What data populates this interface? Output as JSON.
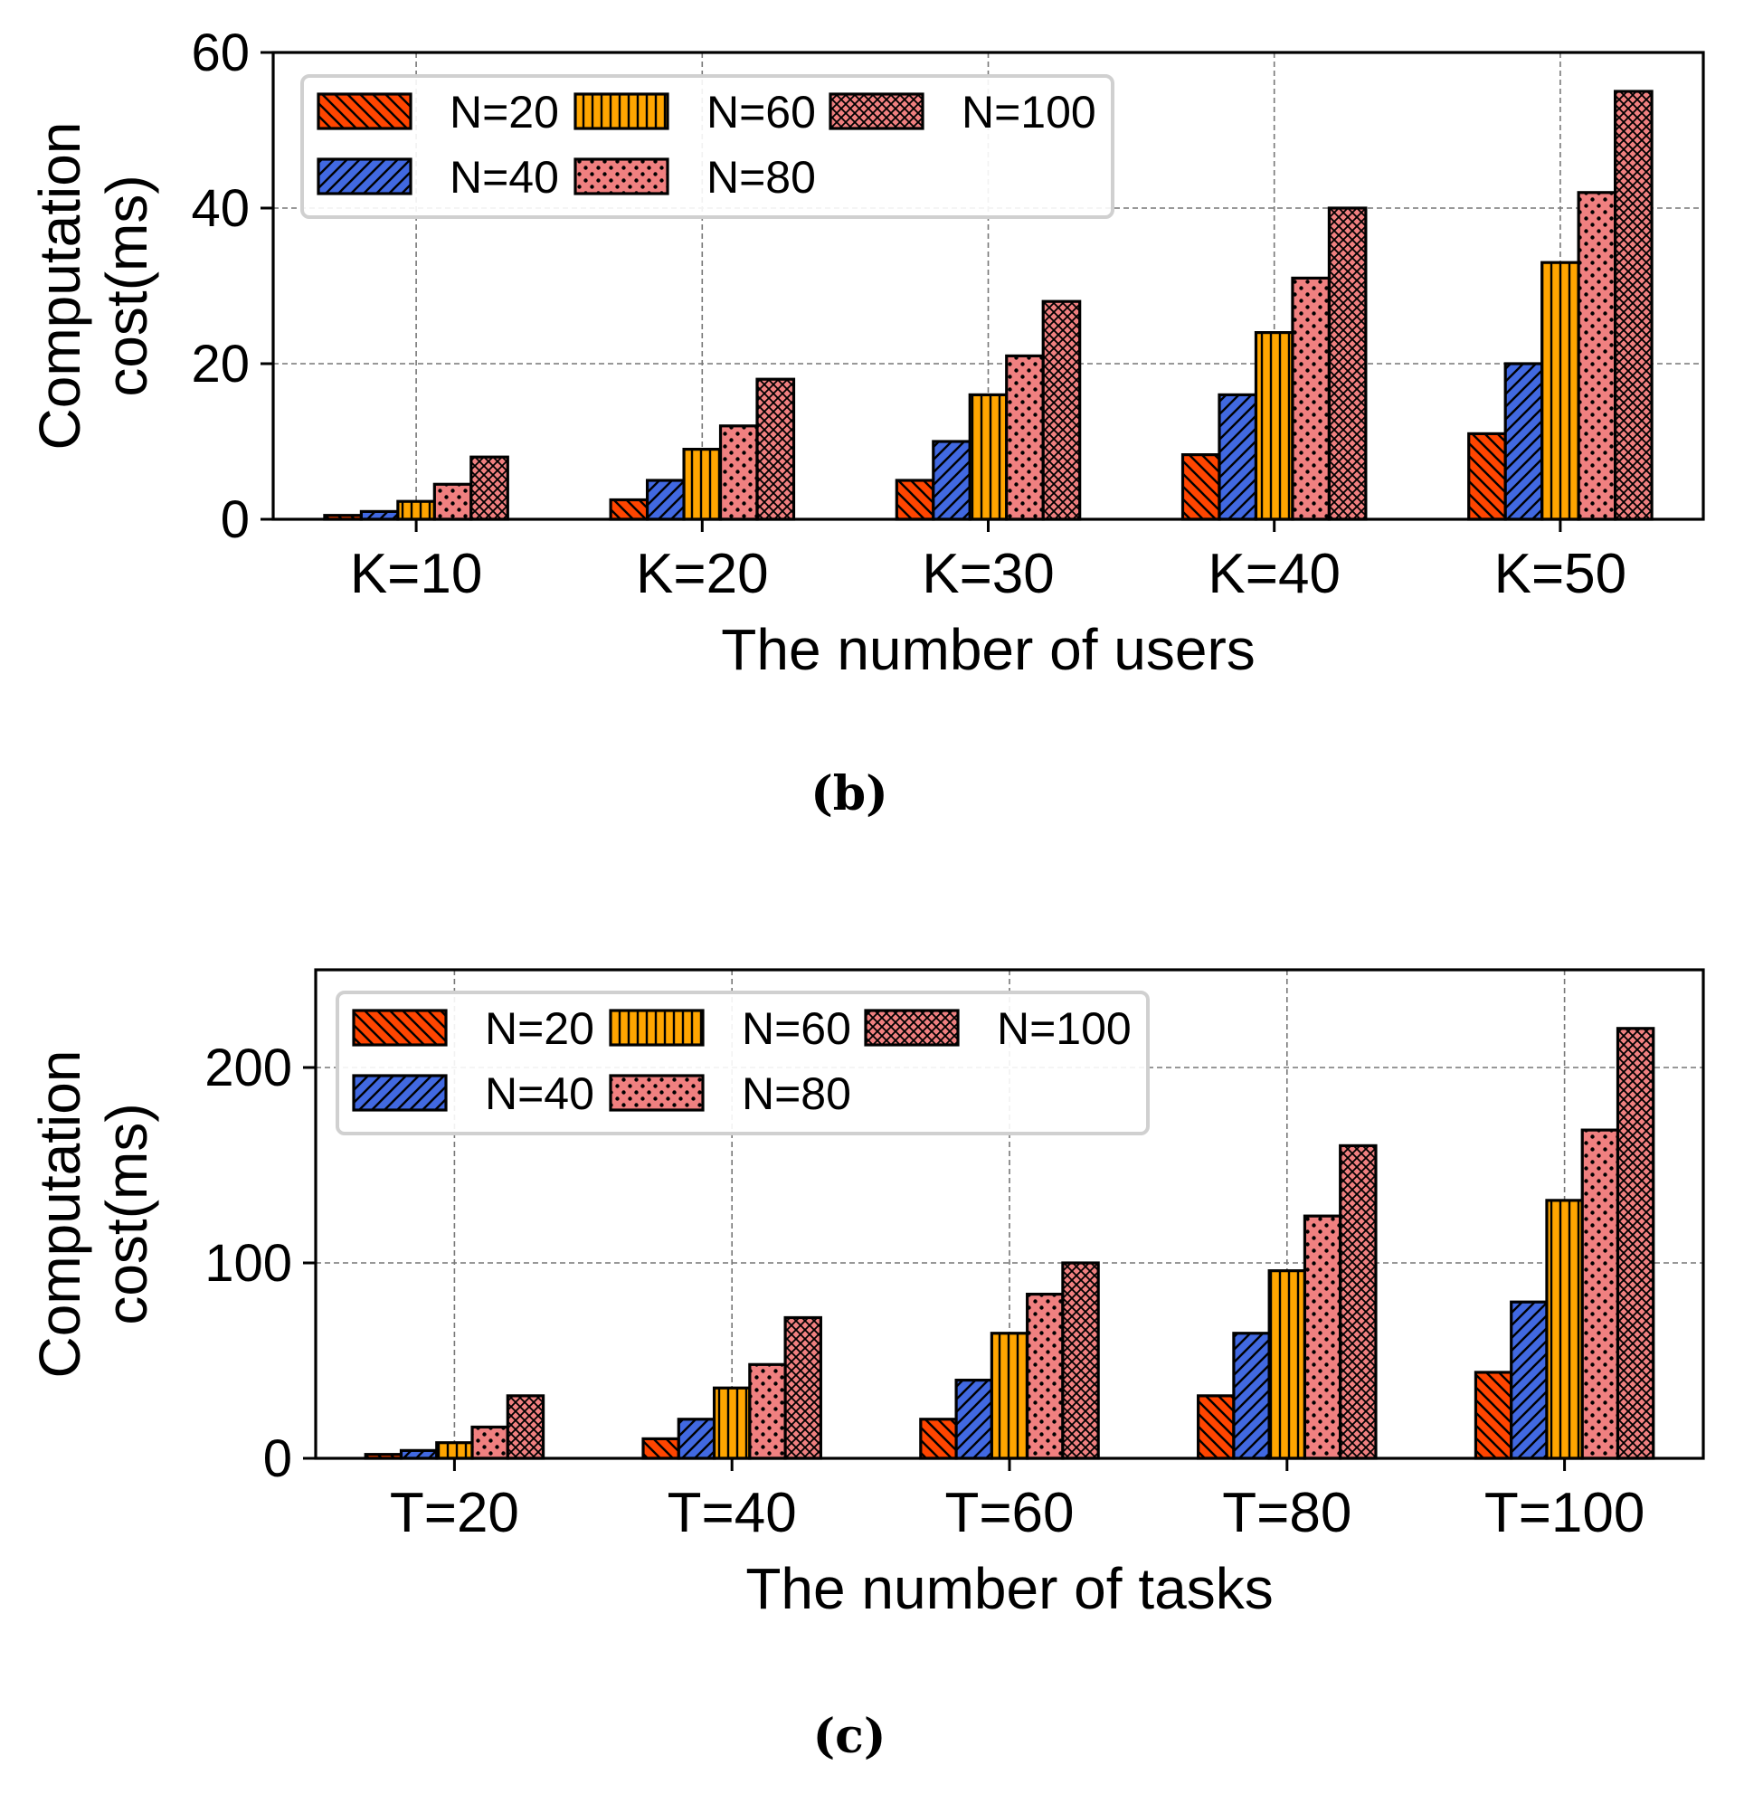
{
  "series_colors": [
    "#ff4500",
    "#4169e1",
    "#ffa500",
    "#f08080",
    "#f08080"
  ],
  "series_patterns": [
    "back-diagonal",
    "forward-diagonal",
    "vertical",
    "dots",
    "crosshatch"
  ],
  "chart_data": [
    {
      "type": "bar",
      "caption": "(b)",
      "xlabel": "The number of users",
      "ylabel_lines": [
        "Computation",
        "cost(ms)"
      ],
      "categories": [
        "K=10",
        "K=20",
        "K=30",
        "K=40",
        "K=50"
      ],
      "ylim": [
        0,
        60
      ],
      "yticks": [
        0,
        20,
        40,
        60
      ],
      "grid": true,
      "legend_position": "top-left",
      "legend_columns": 3,
      "series": [
        {
          "name": "N=20",
          "values": [
            0.5,
            2.5,
            5,
            8.3,
            11
          ]
        },
        {
          "name": "N=40",
          "values": [
            1,
            5,
            10,
            16,
            20
          ]
        },
        {
          "name": "N=60",
          "values": [
            2.3,
            9,
            16,
            24,
            33
          ]
        },
        {
          "name": "N=80",
          "values": [
            4.5,
            12,
            21,
            31,
            42
          ]
        },
        {
          "name": "N=100",
          "values": [
            8,
            18,
            28,
            40,
            55
          ]
        }
      ]
    },
    {
      "type": "bar",
      "caption": "(c)",
      "xlabel": "The number of tasks",
      "ylabel_lines": [
        "Computation",
        "cost(ms)"
      ],
      "categories": [
        "T=20",
        "T=40",
        "T=60",
        "T=80",
        "T=100"
      ],
      "ylim": [
        0,
        250
      ],
      "yticks": [
        0,
        100,
        200
      ],
      "grid": true,
      "legend_position": "top-left",
      "legend_columns": 3,
      "series": [
        {
          "name": "N=20",
          "values": [
            2,
            10,
            20,
            32,
            44
          ]
        },
        {
          "name": "N=40",
          "values": [
            4,
            20,
            40,
            64,
            80
          ]
        },
        {
          "name": "N=60",
          "values": [
            8,
            36,
            64,
            96,
            132
          ]
        },
        {
          "name": "N=80",
          "values": [
            16,
            48,
            84,
            124,
            168
          ]
        },
        {
          "name": "N=100",
          "values": [
            32,
            72,
            100,
            160,
            220
          ]
        }
      ]
    }
  ]
}
